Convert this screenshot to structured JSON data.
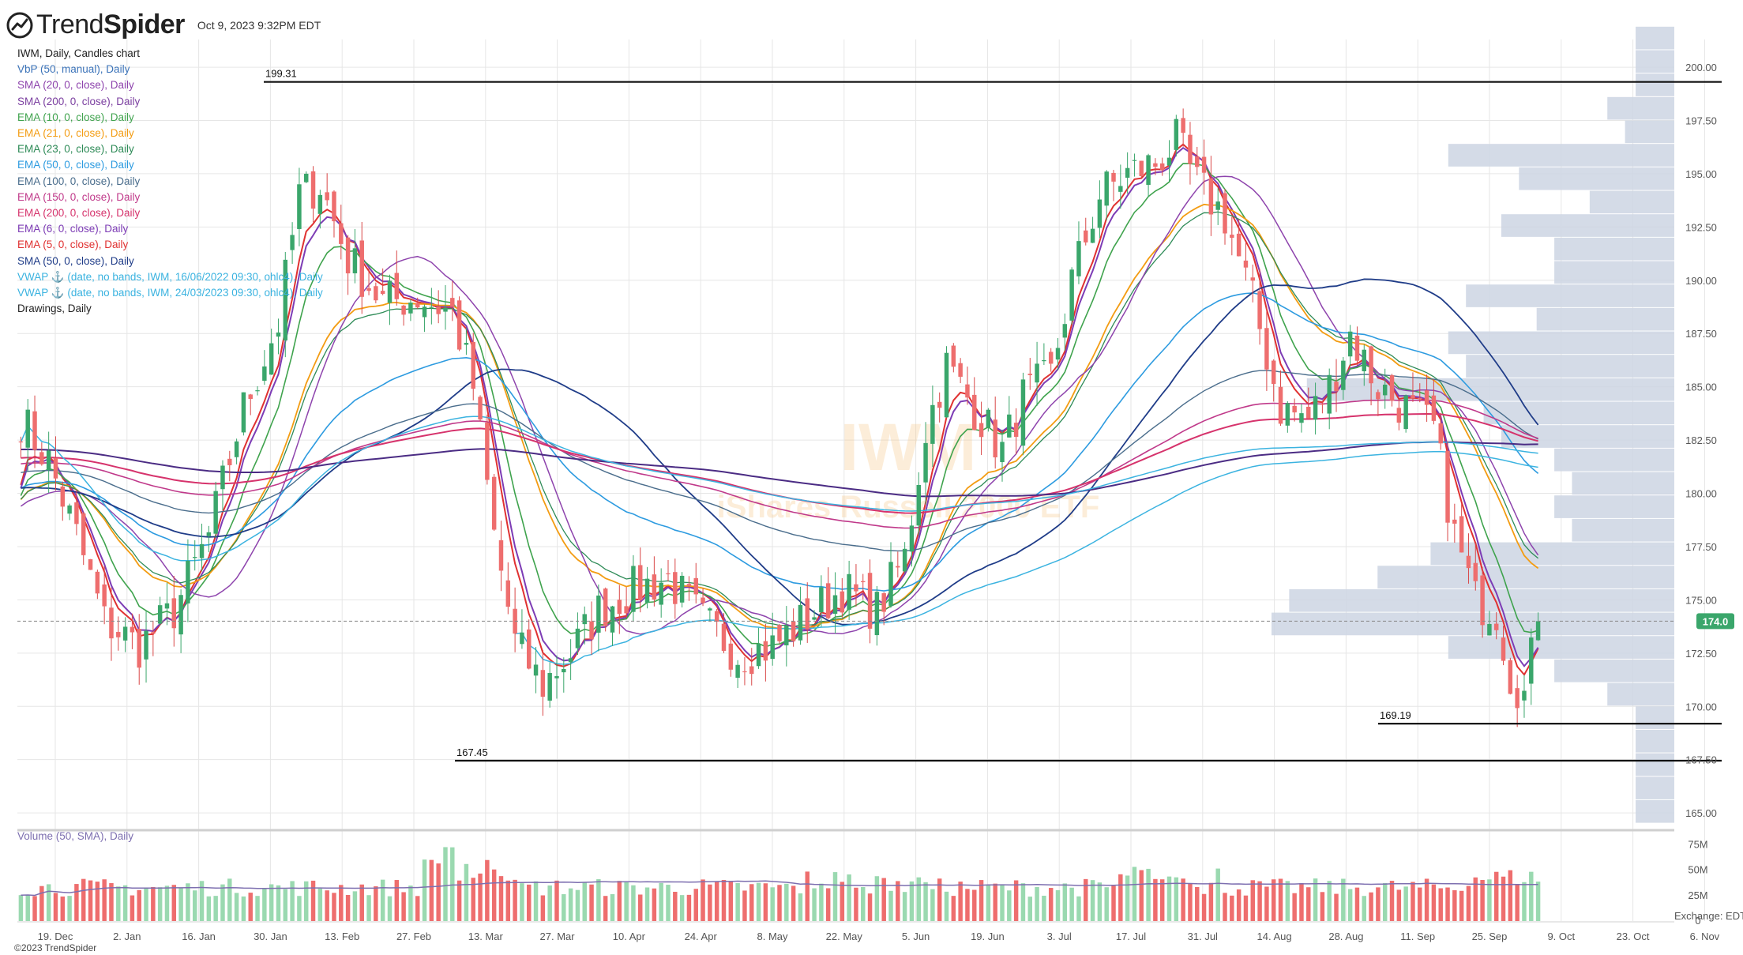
{
  "brand": {
    "name_light": "Trend",
    "name_bold": "Spider",
    "timestamp": "Oct 9, 2023 9:32PM EDT"
  },
  "chart_title": "IWM, Daily, Candles chart",
  "indicators": [
    {
      "label": "VbP (50, manual), Daily",
      "color": "#3b73b9"
    },
    {
      "label": "SMA (20, 0, close), Daily",
      "color": "#8e44ad"
    },
    {
      "label": "SMA (200, 0, close), Daily",
      "color": "#7b3fa0"
    },
    {
      "label": "EMA (10, 0, close), Daily",
      "color": "#3fa34d"
    },
    {
      "label": "EMA (21, 0, close), Daily",
      "color": "#f39c12"
    },
    {
      "label": "EMA (23, 0, close), Daily",
      "color": "#2e8b57"
    },
    {
      "label": "EMA (50, 0, close), Daily",
      "color": "#2d9be0"
    },
    {
      "label": "EMA (100, 0, close), Daily",
      "color": "#4a6d8c"
    },
    {
      "label": "EMA (150, 0, close), Daily",
      "color": "#c0398a"
    },
    {
      "label": "EMA (200, 0, close), Daily",
      "color": "#d6336c"
    },
    {
      "label": "EMA (6, 0, close), Daily",
      "color": "#7d3cb5"
    },
    {
      "label": "EMA (5, 0, close), Daily",
      "color": "#e03131"
    },
    {
      "label": "SMA (50, 0, close), Daily",
      "color": "#1f3c88"
    },
    {
      "label": "VWAP ⚓ (date, no bands, IWM, 16/06/2022 09:30, ohlc4), Daily",
      "color": "#3bb3e0"
    },
    {
      "label": "VWAP ⚓ (date, no bands, IWM, 24/03/2023 09:30, ohlc4), Daily",
      "color": "#3bb3e0"
    },
    {
      "label": "Drawings, Daily",
      "color": "#222222"
    }
  ],
  "watermark": {
    "symbol": "IWM",
    "name": "iShares Russell 2000 ETF"
  },
  "volume_label": "Volume (50, SMA), Daily",
  "exchange_label": "Exchange: EDT",
  "copyright": "©2023 TrendSpider",
  "colors": {
    "up": "#9ad9b0",
    "up_dark": "#3aa66b",
    "down": "#ee6e6e",
    "down_dark": "#d94848",
    "grid": "#e6e6e6",
    "vbp": "#cdd5e3"
  },
  "chart_data": {
    "type": "candlestick",
    "symbol": "IWM",
    "y_ticks": [
      "200.00",
      "197.50",
      "195.00",
      "192.50",
      "190.00",
      "187.50",
      "185.00",
      "182.50",
      "180.00",
      "177.50",
      "175.00",
      "172.50",
      "170.00",
      "167.50",
      "165.00"
    ],
    "ylim": [
      164.3,
      201.3
    ],
    "x_ticks": [
      "19. Dec",
      "2. Jan",
      "16. Jan",
      "30. Jan",
      "13. Feb",
      "27. Feb",
      "13. Mar",
      "27. Mar",
      "10. Apr",
      "24. Apr",
      "8. May",
      "22. May",
      "5. Jun",
      "19. Jun",
      "3. Jul",
      "17. Jul",
      "31. Jul",
      "14. Aug",
      "28. Aug",
      "11. Sep",
      "25. Sep",
      "9. Oct",
      "23. Oct",
      "6. Nov"
    ],
    "volume_ticks": [
      "75M",
      "50M",
      "25M",
      "0"
    ],
    "last_price": "174.0",
    "levels": [
      {
        "label": "199.31",
        "value": 199.31
      },
      {
        "label": "169.19",
        "value": 169.19
      },
      {
        "label": "167.45",
        "value": 167.45
      }
    ],
    "price_path": [
      {
        "t": 0,
        "p": 183.5
      },
      {
        "t": 4,
        "p": 181.5
      },
      {
        "t": 8,
        "p": 178
      },
      {
        "t": 12,
        "p": 174
      },
      {
        "t": 17,
        "p": 172.8
      },
      {
        "t": 22,
        "p": 174.5
      },
      {
        "t": 27,
        "p": 178
      },
      {
        "t": 32,
        "p": 184
      },
      {
        "t": 37,
        "p": 188
      },
      {
        "t": 40,
        "p": 194
      },
      {
        "t": 43,
        "p": 194.5
      },
      {
        "t": 47,
        "p": 191
      },
      {
        "t": 52,
        "p": 189
      },
      {
        "t": 57,
        "p": 189.2
      },
      {
        "t": 62,
        "p": 188.5
      },
      {
        "t": 65,
        "p": 185
      },
      {
        "t": 68,
        "p": 178
      },
      {
        "t": 71,
        "p": 173
      },
      {
        "t": 75,
        "p": 171
      },
      {
        "t": 79,
        "p": 172.5
      },
      {
        "t": 83,
        "p": 174.5
      },
      {
        "t": 88,
        "p": 175.5
      },
      {
        "t": 93,
        "p": 176
      },
      {
        "t": 98,
        "p": 174
      },
      {
        "t": 103,
        "p": 172.5
      },
      {
        "t": 108,
        "p": 172.8
      },
      {
        "t": 113,
        "p": 174.2
      },
      {
        "t": 118,
        "p": 175.5
      },
      {
        "t": 123,
        "p": 174.5
      },
      {
        "t": 127,
        "p": 177
      },
      {
        "t": 130,
        "p": 183
      },
      {
        "t": 133,
        "p": 186
      },
      {
        "t": 137,
        "p": 184
      },
      {
        "t": 141,
        "p": 182
      },
      {
        "t": 144,
        "p": 184.5
      },
      {
        "t": 148,
        "p": 185.5
      },
      {
        "t": 151,
        "p": 190
      },
      {
        "t": 155,
        "p": 194
      },
      {
        "t": 159,
        "p": 195
      },
      {
        "t": 163,
        "p": 195.5
      },
      {
        "t": 166,
        "p": 196.5
      },
      {
        "t": 169,
        "p": 194.5
      },
      {
        "t": 173,
        "p": 193
      },
      {
        "t": 177,
        "p": 189
      },
      {
        "t": 181,
        "p": 184
      },
      {
        "t": 185,
        "p": 183.5
      },
      {
        "t": 188,
        "p": 185
      },
      {
        "t": 191,
        "p": 187.5
      },
      {
        "t": 195,
        "p": 185
      },
      {
        "t": 199,
        "p": 184
      },
      {
        "t": 203,
        "p": 183
      },
      {
        "t": 206,
        "p": 178
      },
      {
        "t": 209,
        "p": 175
      },
      {
        "t": 212,
        "p": 174.5
      },
      {
        "t": 214,
        "p": 171.5
      },
      {
        "t": 216,
        "p": 170.5
      },
      {
        "t": 218,
        "p": 174
      }
    ]
  }
}
